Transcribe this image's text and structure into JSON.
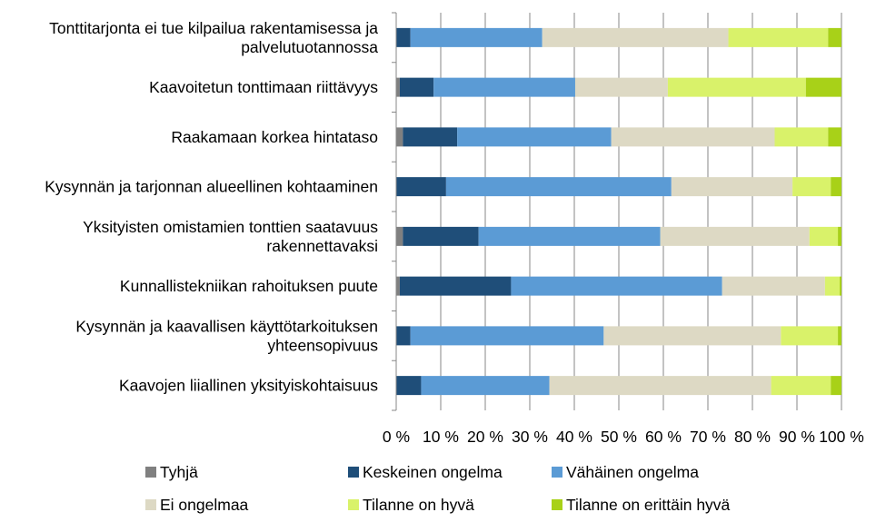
{
  "chart_data": {
    "type": "bar",
    "orientation": "horizontal",
    "stacked": "percent",
    "title": "",
    "xlabel": "",
    "ylabel": "",
    "xlim": [
      0,
      100
    ],
    "grid": "vertical",
    "legend_position": "bottom",
    "categories": [
      "Tonttitarjonta ei tue kilpailua rakentamisessa ja palvelutuotannossa",
      "Kaavoitetun tonttimaan riittävyys",
      "Raakamaan korkea hintataso",
      "Kysynnän ja tarjonnan alueellinen kohtaaminen",
      "Yksityisten omistamien tonttien saatavuus rakennettavaksi",
      "Kunnallistekniikan rahoituksen puute",
      "Kysynnän ja kaavallisen käyttötarkoituksen yhteensopivuus",
      "Kaavojen liiallinen yksityiskohtaisuus"
    ],
    "category_lines": [
      [
        "Tonttitarjonta ei tue kilpailua rakentamisessa ja",
        "palvelutuotannossa"
      ],
      [
        "Kaavoitetun tonttimaan riittävyys"
      ],
      [
        "Raakamaan korkea hintataso"
      ],
      [
        "Kysynnän ja tarjonnan alueellinen kohtaaminen"
      ],
      [
        "Yksityisten omistamien tonttien saatavuus",
        "rakennettavaksi"
      ],
      [
        "Kunnallistekniikan rahoituksen puute"
      ],
      [
        "Kysynnän ja kaavallisen käyttötarkoituksen",
        "yhteensopivuus"
      ],
      [
        "Kaavojen liiallinen yksityiskohtaisuus"
      ]
    ],
    "x_ticks": [
      "0 %",
      "10 %",
      "20 %",
      "30 %",
      "40 %",
      "50 %",
      "60 %",
      "70 %",
      "80 %",
      "90 %",
      "100 %"
    ],
    "series": [
      {
        "name": "Tyhjä",
        "color": "#808080",
        "values": [
          0,
          0.8,
          1.5,
          0,
          1.5,
          0.8,
          0,
          0
        ]
      },
      {
        "name": "Keskeinen ongelma",
        "color": "#1f4e79",
        "values": [
          3.2,
          7.6,
          12.2,
          11.2,
          17.0,
          25.0,
          3.2,
          5.6
        ]
      },
      {
        "name": "Vähäinen ongelma",
        "color": "#5b9bd5",
        "values": [
          29.6,
          31.8,
          34.6,
          50.6,
          40.8,
          47.4,
          43.4,
          28.8
        ]
      },
      {
        "name": "Ei ongelmaa",
        "color": "#ddd9c4",
        "values": [
          41.8,
          20.8,
          36.7,
          27.2,
          33.5,
          23.1,
          39.8,
          49.8
        ]
      },
      {
        "name": "Tilanne on hyvä",
        "color": "#d9f26a",
        "values": [
          22.4,
          31.0,
          12.0,
          8.6,
          6.4,
          3.3,
          12.8,
          13.4
        ]
      },
      {
        "name": "Tilanne on erittäin hyvä",
        "color": "#a8d118",
        "values": [
          3.0,
          8.0,
          3.0,
          2.4,
          0.8,
          0.4,
          0.8,
          2.4
        ]
      }
    ]
  }
}
